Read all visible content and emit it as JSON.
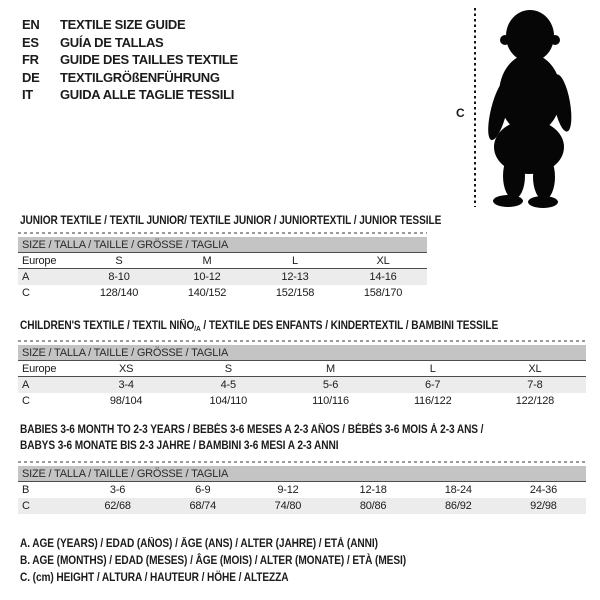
{
  "title_block": {
    "languages": [
      {
        "code": "EN",
        "label": "TEXTILE SIZE GUIDE"
      },
      {
        "code": "ES",
        "label": "GUÍA DE TALLAS"
      },
      {
        "code": "FR",
        "label": "GUIDE DES TAILLES TEXTILE"
      },
      {
        "code": "DE",
        "label": "TEXTILGRÖßENFÜHRUNG"
      },
      {
        "code": "IT",
        "label": "GUIDA ALLE TAGLIE TESSILI"
      }
    ]
  },
  "figure": {
    "measure_label": "C",
    "image": "baby-toddler-silhouette"
  },
  "size_header": "SIZE / TALLA / TAILLE / GRÖSSE / TAGLIA",
  "sections": [
    {
      "id": "junior",
      "title_lines": [
        [
          {
            "t": "JUNIOR TEXTILE / TEXTIL JUNIOR/ TEXTILE JUNIOR / JUNIORTEXTIL / JUNIOR TESSILE"
          }
        ]
      ],
      "table": {
        "rows": [
          {
            "label": "Europe",
            "values": [
              "S",
              "M",
              "L",
              "XL"
            ],
            "shaded": false,
            "rule_below": true
          },
          {
            "label": "A",
            "values": [
              "8-10",
              "10-12",
              "12-13",
              "14-16"
            ],
            "shaded": true,
            "rule_below": false
          },
          {
            "label": "C",
            "values": [
              "128/140",
              "140/152",
              "152/158",
              "158/170"
            ],
            "shaded": false,
            "rule_below": false
          }
        ]
      }
    },
    {
      "id": "children",
      "title_lines": [
        [
          {
            "t": "CHILDREN'S TEXTILE / TEXTIL NIÑO"
          },
          {
            "t": "/A",
            "sub": true
          },
          {
            "t": " / TEXTILE DES ENFANTS / KINDERTEXTIL / BAMBINI TESSILE"
          }
        ]
      ],
      "table": {
        "rows": [
          {
            "label": "Europe",
            "values": [
              "XS",
              "S",
              "M",
              "L",
              "XL"
            ],
            "shaded": false,
            "rule_below": true
          },
          {
            "label": "A",
            "values": [
              "3-4",
              "4-5",
              "5-6",
              "6-7",
              "7-8"
            ],
            "shaded": true,
            "rule_below": false
          },
          {
            "label": "C",
            "values": [
              "98/104",
              "104/110",
              "110/116",
              "116/122",
              "122/128"
            ],
            "shaded": false,
            "rule_below": false
          }
        ]
      }
    },
    {
      "id": "babies",
      "title_lines": [
        [
          {
            "t": "BABIES 3-6 MONTH TO 2-3 YEARS / BEBÉS 3-6 MESES A 2-3 AÑOS / BÉBÉS 3-6 MOIS À 2-3 ANS /"
          }
        ],
        [
          {
            "t": "BABYS 3-6 MONATE BIS 2-3 JAHRE / BAMBINI 3-6 MESI A 2-3 ANNI"
          }
        ]
      ],
      "table": {
        "rows": [
          {
            "label": "B",
            "values": [
              "3-6",
              "6-9",
              "9-12",
              "12-18",
              "18-24",
              "24-36"
            ],
            "shaded": false,
            "rule_below": false
          },
          {
            "label": "C",
            "values": [
              "62/68",
              "68/74",
              "74/80",
              "80/86",
              "86/92",
              "92/98"
            ],
            "shaded": true,
            "rule_below": false
          }
        ]
      }
    }
  ],
  "notes": [
    "A. AGE (YEARS) / EDAD (AÑOS) / ÂGE (ANS) / ALTER (JAHRE) / ETÀ (ANNI)",
    "B. AGE (MONTHS) / EDAD (MESES) / ÂGE (MOIS) / ALTER (MONATE) / ETÀ (MESI)",
    "C. (cm) HEIGHT / ALTURA / HAUTEUR / HÖHE / ALTEZZA"
  ],
  "colors": {
    "header_bar": "#c4c4c4",
    "alt_row": "#ececec",
    "text": "#1b1b1b",
    "dashed_line": "#9a9a9a",
    "rule_line": "#4d4d4d",
    "silhouette": "#060606"
  }
}
